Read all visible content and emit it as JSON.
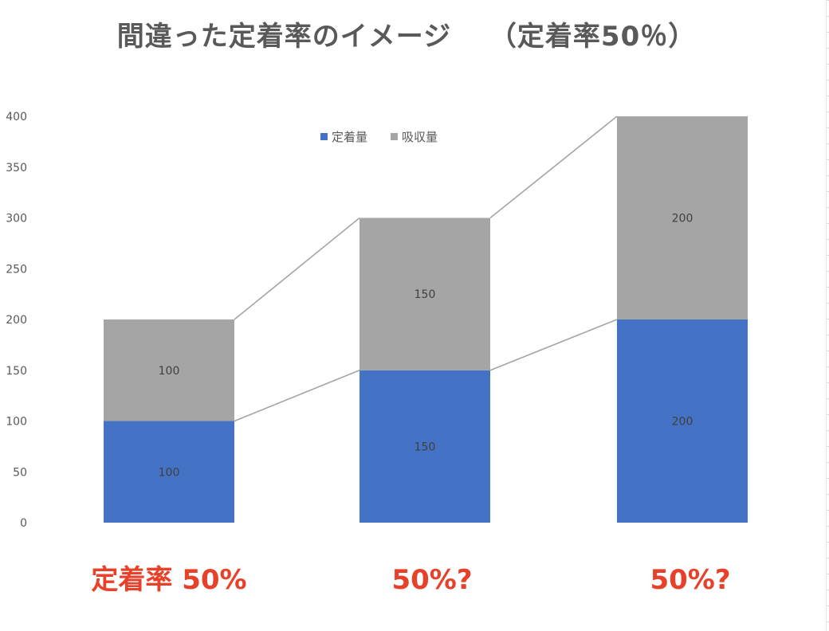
{
  "chart_data": {
    "type": "bar",
    "stacked": true,
    "title": "間違った定着率のイメージ　 （定着率50％）",
    "categories": [
      "定着率 50%",
      "50%?",
      "50%?"
    ],
    "series": [
      {
        "name": "定着量",
        "values": [
          100,
          150,
          200
        ],
        "color": "#4472c4",
        "labels": [
          "100",
          "150",
          "200"
        ]
      },
      {
        "name": "吸収量",
        "values": [
          100,
          150,
          200
        ],
        "color": "#a5a5a5",
        "labels": [
          "100",
          "150",
          "200"
        ]
      }
    ],
    "ylim": [
      0,
      400
    ],
    "yticks": [
      0,
      50,
      100,
      150,
      200,
      250,
      300,
      350,
      400
    ],
    "series_lines": true,
    "series_line_color": "#a5a5a5",
    "grid": false,
    "legend_position": "top-center",
    "category_label_color": "#e8412a"
  }
}
